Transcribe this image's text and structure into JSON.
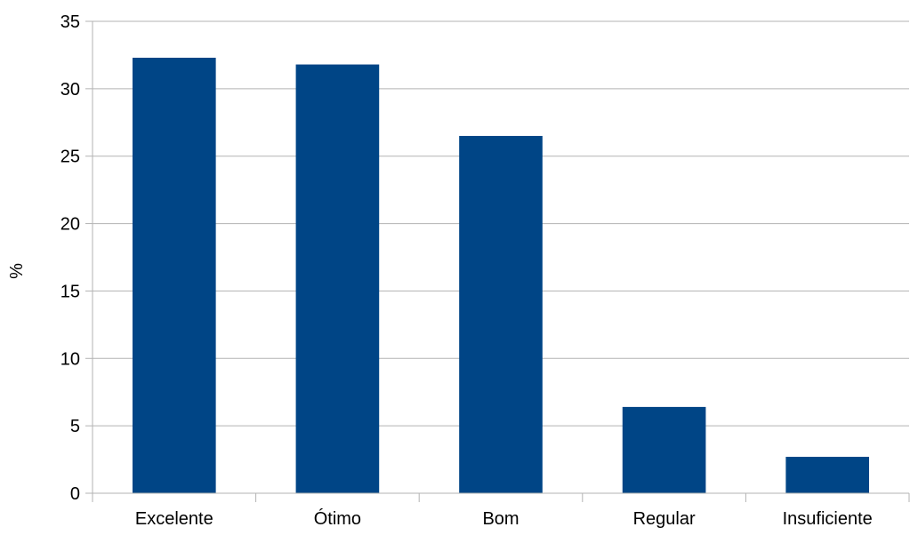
{
  "chart_data": {
    "type": "bar",
    "title": "",
    "xlabel": "",
    "ylabel": "%",
    "ylim": [
      0,
      35
    ],
    "y_ticks": [
      "0",
      "5",
      "10",
      "15",
      "20",
      "25",
      "30",
      "35"
    ],
    "categories": [
      "Excelente",
      "Ótimo",
      "Bom",
      "Regular",
      "Insuficiente"
    ],
    "values": [
      32.3,
      31.8,
      26.5,
      6.4,
      2.7
    ],
    "grid": "horizontal",
    "legend": "none",
    "colors": {
      "bar": "#004586",
      "grid": "#b3b3b3",
      "axis": "#b3b3b3"
    }
  }
}
